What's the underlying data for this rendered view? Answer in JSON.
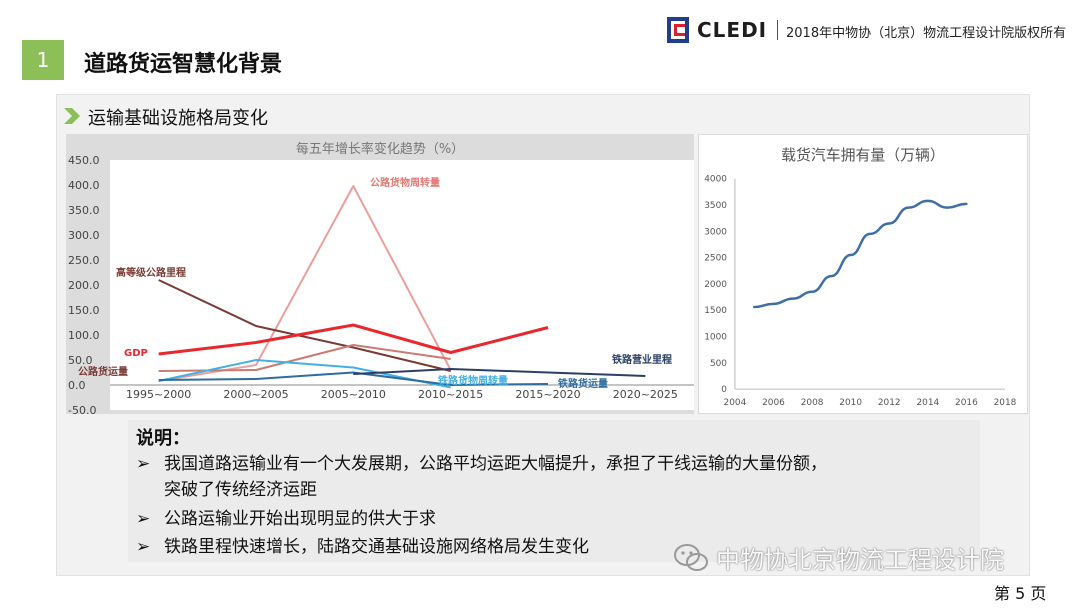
{
  "header": {
    "logo_text": "CLEDI",
    "copyright": "2018年中物协（北京）物流工程设计院版权所有"
  },
  "section": {
    "number": "1",
    "title": "道路货运智慧化背景"
  },
  "subtitle": "运输基础设施格局变化",
  "charts": [
    {
      "type": "line",
      "title": "每五年增长率变化趋势（%）",
      "categories": [
        "1995~2000",
        "2000~2005",
        "2005~2010",
        "2010~2015",
        "2015~2020",
        "2020~2025"
      ],
      "ylim": [
        -50,
        450
      ],
      "yticks": [
        "450.0",
        "400.0",
        "350.0",
        "300.0",
        "250.0",
        "200.0",
        "150.0",
        "100.0",
        "50.0",
        "0.0",
        "-50.0"
      ],
      "grid": false,
      "series": [
        {
          "name": "公路货物周转量",
          "color": "#e8a09c",
          "values": [
            8,
            40,
            398,
            30,
            null,
            null
          ]
        },
        {
          "name": "高等级公路里程",
          "color": "#7a3b34",
          "values": [
            210,
            118,
            75,
            28,
            null,
            null
          ]
        },
        {
          "name": "GDP",
          "color": "#e8282c",
          "values": [
            62,
            85,
            120,
            65,
            115,
            null
          ]
        },
        {
          "name": "公路货运量",
          "color": "#c97b72",
          "values": [
            28,
            30,
            80,
            52,
            null,
            null
          ]
        },
        {
          "name": "铁路货物周转量",
          "color": "#45b0e0",
          "values": [
            8,
            50,
            35,
            -5,
            null,
            null
          ]
        },
        {
          "name": "铁路货运量",
          "color": "#2f6d9e",
          "values": [
            10,
            12,
            25,
            0,
            2,
            null
          ]
        },
        {
          "name": "铁路营业里程",
          "color": "#2b3f66",
          "values": [
            null,
            null,
            22,
            32,
            25,
            18
          ]
        }
      ]
    },
    {
      "type": "line",
      "title": "载货汽车拥有量（万辆）",
      "x": [
        2004,
        2006,
        2008,
        2010,
        2012,
        2014,
        2016,
        2018
      ],
      "xticks": [
        "2004",
        "2006",
        "2008",
        "2010",
        "2012",
        "2014",
        "2016",
        "2018"
      ],
      "ylim": [
        0,
        4000
      ],
      "yticks": [
        "4000",
        "3500",
        "3000",
        "2500",
        "2000",
        "1500",
        "1000",
        "500",
        "0"
      ],
      "grid": false,
      "series": [
        {
          "color": "#3e6ea4",
          "points": [
            [
              2005,
              1560
            ],
            [
              2006,
              1620
            ],
            [
              2007,
              1720
            ],
            [
              2008,
              1850
            ],
            [
              2009,
              2150
            ],
            [
              2010,
              2550
            ],
            [
              2011,
              2950
            ],
            [
              2012,
              3150
            ],
            [
              2013,
              3450
            ],
            [
              2014,
              3580
            ],
            [
              2015,
              3450
            ],
            [
              2016,
              3520
            ]
          ]
        }
      ]
    }
  ],
  "notes": {
    "title": "说明：",
    "marker": "➢",
    "items": [
      "我国道路运输业有一个大发展期，公路平均运距大幅提升，承担了干线运输的大量份额，",
      "突破了传统经济运距",
      "公路运输业开始出现明显的供大于求",
      "铁路里程快速增长，陆路交通基础设施网络格局发生变化"
    ]
  },
  "watermark": "中物协北京物流工程设计院",
  "page": "第 5 页"
}
